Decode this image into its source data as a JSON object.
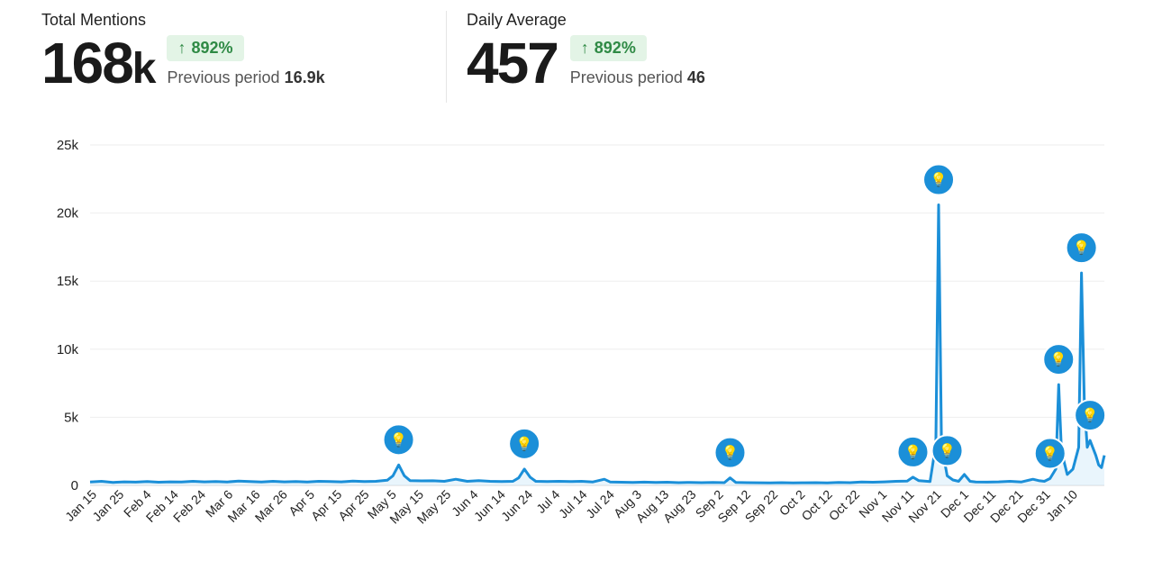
{
  "kpis": [
    {
      "title": "Total Mentions",
      "value": "168",
      "unit": "k",
      "change": "892%",
      "change_icon": "arrow-up-icon",
      "prev_label": "Previous period",
      "prev_value": "16.9k"
    },
    {
      "title": "Daily Average",
      "value": "457",
      "unit": "",
      "change": "892%",
      "change_icon": "arrow-up-icon",
      "prev_label": "Previous period",
      "prev_value": "46"
    }
  ],
  "colors": {
    "line": "#1b8fd8",
    "fill": "#dbeefa",
    "marker": "#1b8fd8",
    "badge_bg": "#e3f4e6",
    "badge_text": "#2f8a45"
  },
  "chart_data": {
    "type": "area",
    "title": "",
    "xlabel": "",
    "ylabel": "",
    "ylim": [
      0,
      25000
    ],
    "yticks": [
      0,
      5000,
      10000,
      15000,
      20000,
      25000
    ],
    "ytick_labels": [
      "0",
      "5k",
      "10k",
      "15k",
      "20k",
      "25k"
    ],
    "xtick_labels": [
      "Jan 15",
      "Jan 25",
      "Feb 4",
      "Feb 14",
      "Feb 24",
      "Mar 6",
      "Mar 16",
      "Mar 26",
      "Apr 5",
      "Apr 15",
      "Apr 25",
      "May 5",
      "May 15",
      "May 25",
      "Jun 4",
      "Jun 14",
      "Jun 24",
      "Jul 4",
      "Jul 14",
      "Jul 24",
      "Aug 3",
      "Aug 13",
      "Aug 23",
      "Sep 2",
      "Sep 12",
      "Sep 22",
      "Oct 2",
      "Oct 12",
      "Oct 22",
      "Nov 1",
      "Nov 11",
      "Nov 21",
      "Dec 1",
      "Dec 11",
      "Dec 21",
      "Dec 31",
      "Jan 10"
    ],
    "grid": true,
    "series": [
      {
        "values": [
          [
            0,
            250
          ],
          [
            4,
            300
          ],
          [
            8,
            220
          ],
          [
            12,
            260
          ],
          [
            16,
            240
          ],
          [
            20,
            280
          ],
          [
            24,
            230
          ],
          [
            28,
            260
          ],
          [
            32,
            250
          ],
          [
            36,
            300
          ],
          [
            40,
            260
          ],
          [
            44,
            280
          ],
          [
            48,
            250
          ],
          [
            52,
            320
          ],
          [
            56,
            280
          ],
          [
            60,
            250
          ],
          [
            64,
            300
          ],
          [
            68,
            260
          ],
          [
            72,
            280
          ],
          [
            76,
            250
          ],
          [
            80,
            300
          ],
          [
            84,
            280
          ],
          [
            88,
            260
          ],
          [
            92,
            320
          ],
          [
            96,
            280
          ],
          [
            100,
            300
          ],
          [
            104,
            380
          ],
          [
            106,
            700
          ],
          [
            108,
            1500
          ],
          [
            110,
            700
          ],
          [
            112,
            350
          ],
          [
            116,
            330
          ],
          [
            120,
            340
          ],
          [
            124,
            300
          ],
          [
            128,
            450
          ],
          [
            132,
            300
          ],
          [
            136,
            350
          ],
          [
            140,
            300
          ],
          [
            144,
            280
          ],
          [
            148,
            300
          ],
          [
            150,
            550
          ],
          [
            152,
            1200
          ],
          [
            154,
            600
          ],
          [
            156,
            300
          ],
          [
            160,
            280
          ],
          [
            164,
            300
          ],
          [
            168,
            280
          ],
          [
            172,
            300
          ],
          [
            176,
            250
          ],
          [
            180,
            450
          ],
          [
            182,
            250
          ],
          [
            186,
            230
          ],
          [
            190,
            220
          ],
          [
            194,
            240
          ],
          [
            198,
            220
          ],
          [
            202,
            230
          ],
          [
            206,
            200
          ],
          [
            210,
            220
          ],
          [
            214,
            200
          ],
          [
            218,
            210
          ],
          [
            222,
            200
          ],
          [
            224,
            550
          ],
          [
            226,
            220
          ],
          [
            230,
            200
          ],
          [
            234,
            190
          ],
          [
            238,
            180
          ],
          [
            242,
            200
          ],
          [
            246,
            180
          ],
          [
            250,
            190
          ],
          [
            254,
            200
          ],
          [
            258,
            180
          ],
          [
            262,
            220
          ],
          [
            266,
            200
          ],
          [
            270,
            250
          ],
          [
            274,
            230
          ],
          [
            278,
            260
          ],
          [
            282,
            300
          ],
          [
            286,
            320
          ],
          [
            288,
            600
          ],
          [
            290,
            350
          ],
          [
            294,
            280
          ],
          [
            296,
            3000
          ],
          [
            297,
            20600
          ],
          [
            298,
            3000
          ],
          [
            300,
            700
          ],
          [
            302,
            400
          ],
          [
            304,
            300
          ],
          [
            306,
            800
          ],
          [
            308,
            300
          ],
          [
            310,
            250
          ],
          [
            314,
            240
          ],
          [
            318,
            260
          ],
          [
            322,
            300
          ],
          [
            326,
            250
          ],
          [
            330,
            450
          ],
          [
            332,
            350
          ],
          [
            334,
            300
          ],
          [
            336,
            500
          ],
          [
            338,
            1200
          ],
          [
            339,
            7400
          ],
          [
            340,
            2500
          ],
          [
            342,
            800
          ],
          [
            344,
            1200
          ],
          [
            346,
            2800
          ],
          [
            347,
            15600
          ],
          [
            348,
            6000
          ],
          [
            349,
            2800
          ],
          [
            350,
            3300
          ],
          [
            352,
            2200
          ],
          [
            353,
            1500
          ],
          [
            354,
            1300
          ],
          [
            355,
            2200
          ]
        ]
      }
    ],
    "insights": [
      [
        108,
        1500
      ],
      [
        152,
        1200
      ],
      [
        224,
        550
      ],
      [
        288,
        600
      ],
      [
        297,
        20600
      ],
      [
        300,
        700
      ],
      [
        336,
        500
      ],
      [
        339,
        7400
      ],
      [
        347,
        15600
      ],
      [
        350,
        3300
      ]
    ],
    "insight_icon": "lightbulb-icon"
  }
}
